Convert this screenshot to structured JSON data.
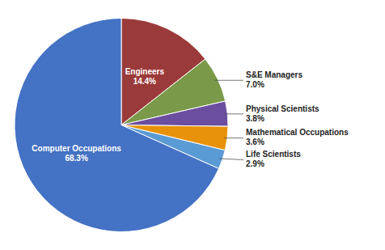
{
  "chart_data": {
    "type": "pie",
    "categories": [
      "Engineers",
      "S&E Managers",
      "Physical Scientists",
      "Mathematical Occupations",
      "Life Scientists",
      "Computer Occupations"
    ],
    "values": [
      14.4,
      7.0,
      3.8,
      3.6,
      2.9,
      68.3
    ],
    "value_labels": [
      "14.4%",
      "7.0%",
      "3.8%",
      "3.6%",
      "2.9%",
      "68.3%"
    ],
    "colors": [
      "#9b3a3a",
      "#7a9a4a",
      "#6b4ea0",
      "#e8920a",
      "#5b9bd5",
      "#4472c4"
    ],
    "data_labels": true
  }
}
